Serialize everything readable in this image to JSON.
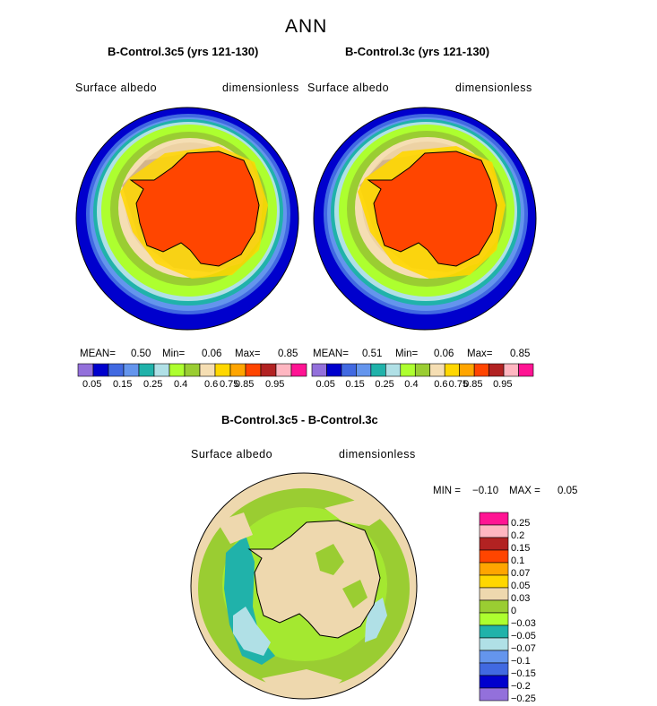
{
  "page_title": "ANN",
  "colors": {
    "abs_palette": [
      "#9370DB",
      "#0000CD",
      "#4169E1",
      "#6495ED",
      "#20B2AA",
      "#B0E0E6",
      "#ADFF2F",
      "#9ACD32",
      "#F5DEB3",
      "#FFD700",
      "#FFA500",
      "#FF4500",
      "#B22222",
      "#FFB6C1",
      "#FF1493"
    ],
    "diff_palette": [
      "#FF1493",
      "#FFB6C1",
      "#B22222",
      "#FF4500",
      "#FFA500",
      "#FFD700",
      "#EED8AE",
      "#9ACD32",
      "#ADFF2F",
      "#20B2AA",
      "#B0E0E6",
      "#6495ED",
      "#4169E1",
      "#0000CD",
      "#9370DB"
    ]
  },
  "chart_data": [
    {
      "type": "heatmap",
      "projection": "south-polar-stereographic",
      "title": "B-Control.3c5 (yrs 121-130)",
      "variable": "Surface albedo",
      "units": "dimensionless",
      "stats": {
        "mean_label": "MEAN=",
        "mean": "0.50",
        "min_label": "Min=",
        "min": "0.06",
        "max_label": "Max=",
        "max": "0.85"
      },
      "colorbar_ticks": [
        "0.05",
        "0.15",
        "0.25",
        "0.4",
        "0.6",
        "0.75",
        "0.85",
        "0.95"
      ]
    },
    {
      "type": "heatmap",
      "projection": "south-polar-stereographic",
      "title": "B-Control.3c (yrs 121-130)",
      "variable": "Surface albedo",
      "units": "dimensionless",
      "stats": {
        "mean_label": "MEAN=",
        "mean": "0.51",
        "min_label": "Min=",
        "min": "0.06",
        "max_label": "Max=",
        "max": "0.85"
      },
      "colorbar_ticks": [
        "0.05",
        "0.15",
        "0.25",
        "0.4",
        "0.6",
        "0.75",
        "0.85",
        "0.95"
      ]
    },
    {
      "type": "heatmap",
      "projection": "south-polar-stereographic",
      "title": "B-Control.3c5 - B-Control.3c",
      "variable": "Surface albedo",
      "units": "dimensionless",
      "stats": {
        "min_label": "MIN =",
        "min": "−0.10",
        "max_label": "MAX =",
        "max": "0.05"
      },
      "legend_levels": [
        "0.25",
        "0.2",
        "0.15",
        "0.1",
        "0.07",
        "0.05",
        "0.03",
        "0",
        "−0.03",
        "−0.05",
        "−0.07",
        "−0.1",
        "−0.15",
        "−0.2",
        "−0.25"
      ]
    }
  ]
}
